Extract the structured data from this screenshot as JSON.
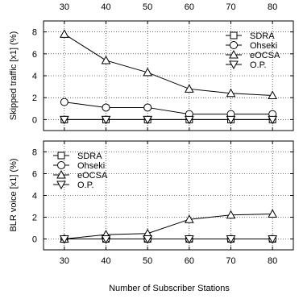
{
  "chart_data": [
    {
      "type": "line",
      "ylabel": "Skipped traffic [x1] (%)",
      "x": [
        30,
        40,
        50,
        60,
        70,
        80
      ],
      "xlim": [
        25,
        85
      ],
      "ylim": [
        -1,
        9
      ],
      "yticks": [
        0,
        2,
        4,
        6,
        8
      ],
      "xticks_position": "top",
      "grid": true,
      "legend": "top-right",
      "series": [
        {
          "name": "SDRA",
          "marker": "square",
          "values": [
            0,
            0,
            0,
            0,
            0,
            0
          ]
        },
        {
          "name": "Ohseki",
          "marker": "circle",
          "values": [
            1.6,
            1.1,
            1.1,
            0.5,
            0.5,
            0.5
          ]
        },
        {
          "name": "eOCSA",
          "marker": "triangle-up",
          "values": [
            7.8,
            5.4,
            4.3,
            2.8,
            2.4,
            2.2
          ]
        },
        {
          "name": "O.P.",
          "marker": "triangle-down",
          "values": [
            0,
            0,
            0,
            0,
            0,
            0
          ]
        }
      ]
    },
    {
      "type": "line",
      "ylabel": "BLR voice [x1] (%)",
      "xlabel": "Number of Subscriber Stations",
      "x": [
        30,
        40,
        50,
        60,
        70,
        80
      ],
      "xlim": [
        25,
        85
      ],
      "ylim": [
        -1,
        9
      ],
      "yticks": [
        0,
        2,
        4,
        6,
        8
      ],
      "xticks_position": "bottom",
      "grid": true,
      "legend": "top-left",
      "series": [
        {
          "name": "SDRA",
          "marker": "square",
          "values": [
            0,
            0,
            0,
            0,
            0,
            0
          ]
        },
        {
          "name": "Ohseki",
          "marker": "circle",
          "values": [
            0,
            0,
            0,
            0,
            0,
            0
          ]
        },
        {
          "name": "eOCSA",
          "marker": "triangle-up",
          "values": [
            0,
            0.4,
            0.5,
            1.8,
            2.2,
            2.3
          ]
        },
        {
          "name": "O.P.",
          "marker": "triangle-down",
          "values": [
            0,
            0,
            0,
            0,
            0,
            0
          ]
        }
      ]
    }
  ]
}
